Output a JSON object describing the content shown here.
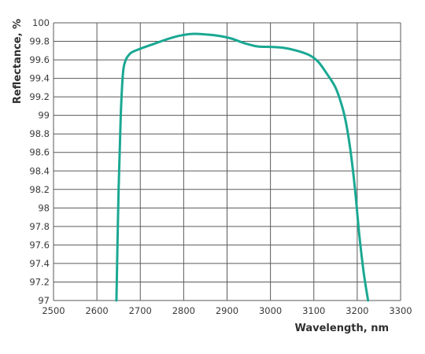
{
  "chart_data": {
    "type": "line",
    "title": "",
    "xlabel": "Wavelength, nm",
    "ylabel": "Reflectance, %",
    "xlim": [
      2500,
      3300
    ],
    "ylim": [
      97,
      100
    ],
    "grid": true,
    "x_ticks": [
      "2500",
      "2600",
      "2700",
      "2800",
      "2900",
      "3000",
      "3100",
      "3200",
      "3300"
    ],
    "y_ticks": [
      "97",
      "97.2",
      "97.4",
      "97.6",
      "97.8",
      "98",
      "98.2",
      "98.4",
      "98.6",
      "98.8",
      "99",
      "99.2",
      "99.4",
      "99.6",
      "99.8",
      "100"
    ],
    "series": [
      {
        "color": "#1aa893",
        "x": [
          2645,
          2650,
          2655,
          2660,
          2665,
          2670,
          2680,
          2700,
          2730,
          2760,
          2790,
          2820,
          2850,
          2880,
          2910,
          2940,
          2970,
          3000,
          3030,
          3060,
          3090,
          3110,
          3130,
          3150,
          3165,
          3175,
          3185,
          3195,
          3205,
          3215,
          3225
        ],
        "y": [
          97.0,
          98.2,
          99.0,
          99.45,
          99.58,
          99.63,
          99.68,
          99.72,
          99.77,
          99.82,
          99.86,
          99.88,
          99.875,
          99.86,
          99.83,
          99.78,
          99.745,
          99.74,
          99.73,
          99.7,
          99.65,
          99.58,
          99.45,
          99.3,
          99.1,
          98.9,
          98.6,
          98.2,
          97.7,
          97.3,
          97.0
        ]
      }
    ]
  }
}
